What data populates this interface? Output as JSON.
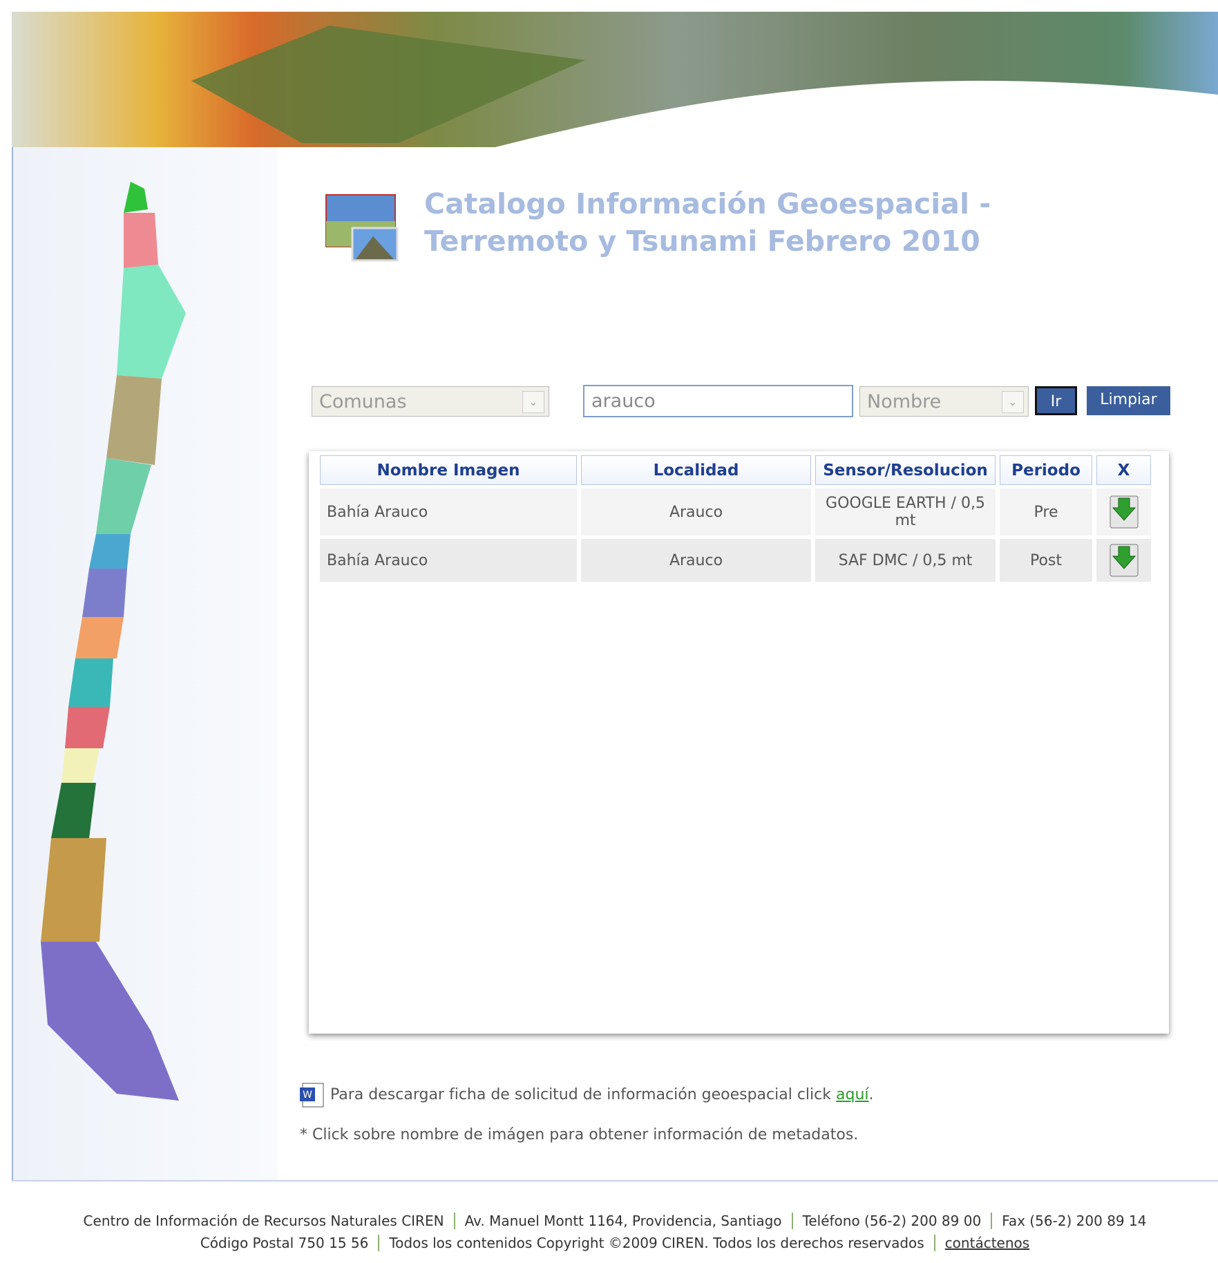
{
  "header": {
    "title": "Catalogo Información Geoespacial - Terremoto y Tsunami Febrero 2010"
  },
  "search": {
    "region_select": "Comunas",
    "query": "arauco",
    "field_select": "Nombre",
    "go_button": "Ir",
    "clear_button": "Limpiar"
  },
  "table": {
    "headers": [
      "Nombre Imagen",
      "Localidad",
      "Sensor/Resolucion",
      "Periodo",
      "X"
    ],
    "rows": [
      [
        "Bahía Arauco",
        "Arauco",
        "GOOGLE EARTH / 0,5 mt",
        "Pre"
      ],
      [
        "Bahía Arauco",
        "Arauco",
        "SAF DMC / 0,5 mt",
        "Post"
      ]
    ]
  },
  "notes": {
    "download_text": "Para descargar ficha de solicitud de información geoespacial click",
    "download_link": "aquí",
    "download_end": ".",
    "metadata_hint": "* Click sobre nombre de imágen para obtener información de metadatos."
  },
  "footer": {
    "lines": [
      [
        "Centro de Información de Recursos Naturales CIREN",
        "Av. Manuel Montt 1164, Providencia, Santiago",
        "Teléfono (56-2) 200 89 00",
        "Fax (56-2) 200 89 14"
      ],
      [
        "Código Postal 750 15 56",
        "Todos los contenidos Copyright ©2009 CIREN. Todos los derechos reservados",
        "contáctenos"
      ]
    ]
  }
}
